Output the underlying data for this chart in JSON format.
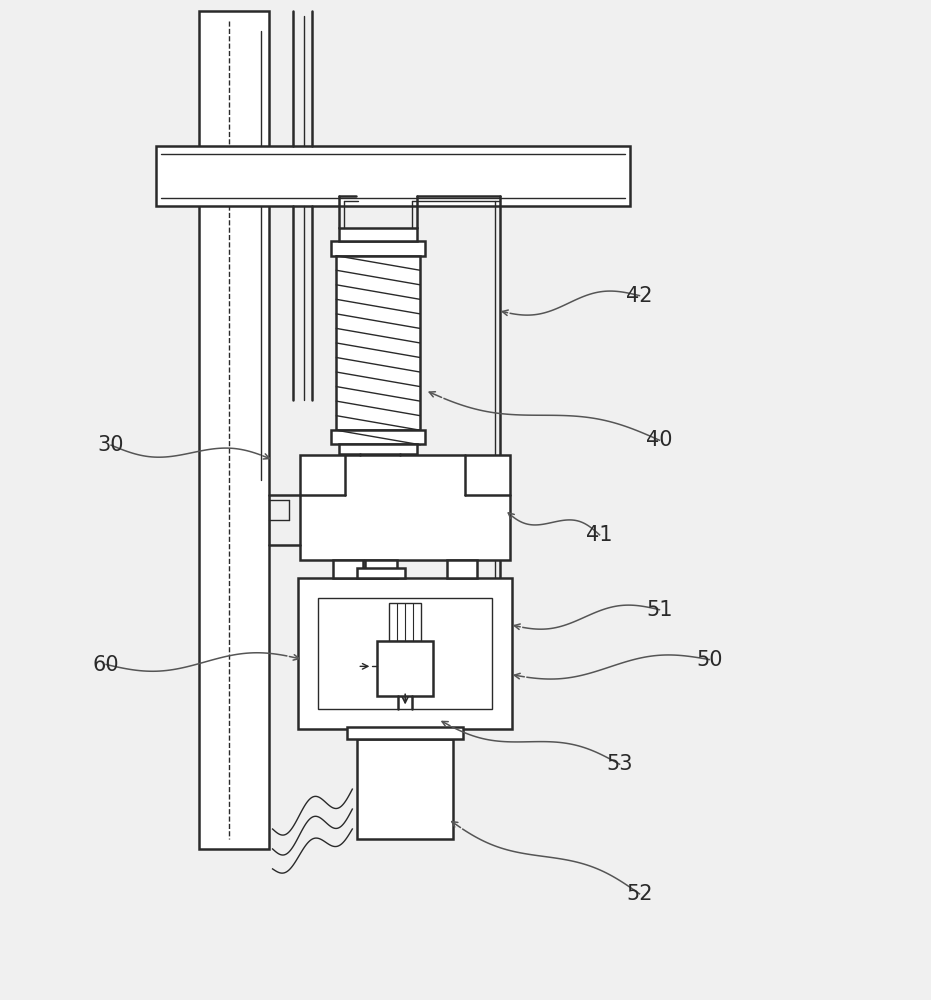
{
  "bg_color": "#f0f0f0",
  "line_color": "#2a2a2a",
  "label_color": "#2a2a2a",
  "leader_color": "#555555",
  "figsize": [
    9.31,
    10.0
  ],
  "dpi": 100,
  "lw_main": 1.8,
  "lw_thin": 1.0,
  "label_fs": 15
}
